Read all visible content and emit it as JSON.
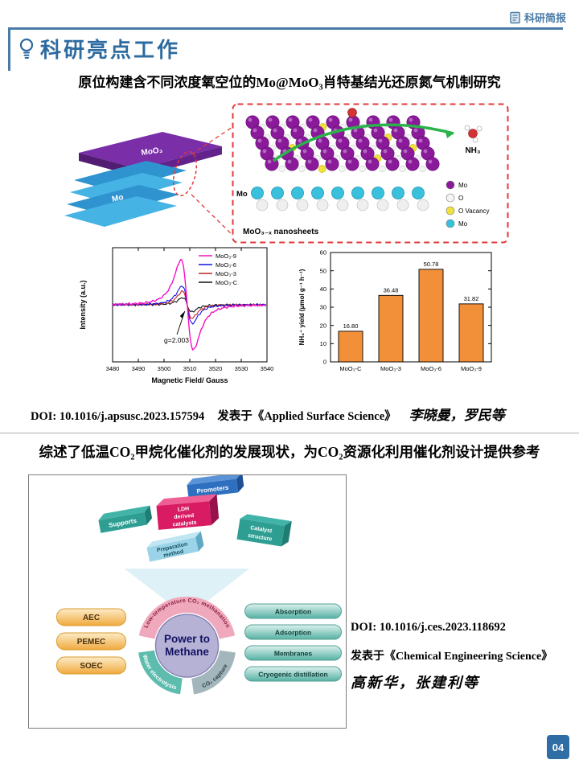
{
  "colors": {
    "accent": "#2c6aa0",
    "rule": "#4a7ba6",
    "dashed_box": "#e23a3a",
    "bar_fill": "#f2903a"
  },
  "masthead": {
    "brand": "科研简报"
  },
  "header": {
    "title": "科研亮点工作"
  },
  "section1": {
    "title": "原位构建含不同浓度氧空位的Mo@MoO₃肖特基结光还原氮气机制研究",
    "schematic": {
      "layer_top_label": "MoO₃",
      "layer_bottom_label": "Mo",
      "mo_side_label": "Mo",
      "nanosheet_label": "MoO₃₋ₓ nanosheets",
      "nh3_label": "NH₃",
      "legend": [
        {
          "label": "Mo",
          "color": "#8b1a9b"
        },
        {
          "label": "O",
          "color": "#f4f4f4"
        },
        {
          "label": "O Vacancy",
          "color": "#f2e13c"
        },
        {
          "label": "Mo",
          "color": "#38c0dd"
        }
      ]
    },
    "citation": {
      "doi": "DOI: 10.1016/j.apsusc.2023.157594",
      "published": "发表于《Applied Surface Science》",
      "authors": "李晓曼，罗民等"
    }
  },
  "section2": {
    "title": "综述了低温CO₂甲烷化催化剂的发展现状，为CO₂资源化利用催化剂设计提供参考",
    "abstract_fig": {
      "top_boxes": [
        {
          "label": "Supports",
          "lines": [
            "Supports"
          ]
        },
        {
          "label": "Promoters",
          "lines": [
            "Promoters"
          ]
        },
        {
          "label": "LDH derived catalysts",
          "lines": [
            "LDH",
            "derived",
            "catalysts"
          ]
        },
        {
          "label": "Catalyst structure",
          "lines": [
            "Catalyst",
            "structure"
          ]
        },
        {
          "label": "Preparation method",
          "lines": [
            "Preparation",
            "method"
          ]
        }
      ],
      "center_title": "Power to Methane",
      "center_lines": [
        "Power to",
        "Methane"
      ],
      "arc_top": "Low-temperature CO₂ methanation",
      "arc_left": "Water electrolysis",
      "arc_right": "CO₂ capture",
      "left_items": [
        "AEC",
        "PEMEC",
        "SOEC"
      ],
      "right_items": [
        "Absorption",
        "Adsorption",
        "Membranes",
        "Cryogenic distillation"
      ]
    },
    "citation": {
      "doi": "DOI: 10.1016/j.ces.2023.118692",
      "published": "发表于《Chemical Engineering  Science》",
      "authors": "高新华，张建利等"
    }
  },
  "footer": {
    "page_number": "04"
  },
  "chart_data": [
    {
      "type": "line",
      "title": "EPR spectra of MoO3 samples",
      "xlabel": "Magnetic Field/ Gauss",
      "ylabel": "Intensity (a.u.)",
      "xlim": [
        3480,
        3540
      ],
      "xticks": [
        3480,
        3490,
        3500,
        3510,
        3520,
        3530,
        3540
      ],
      "annotation": "g=2.003",
      "annotation_x": 3509,
      "legend_position": "top-right",
      "series": [
        {
          "name": "MoO₃-9",
          "color": "#f312c6",
          "amplitude": 1.0,
          "center": 3509,
          "width": 4.2
        },
        {
          "name": "MoO₃-6",
          "color": "#1414e6",
          "amplitude": 0.42,
          "center": 3509,
          "width": 3.4
        },
        {
          "name": "MoO₃-3",
          "color": "#c02424",
          "amplitude": 0.3,
          "center": 3509,
          "width": 3.2
        },
        {
          "name": "MoO₃-C",
          "color": "#111111",
          "amplitude": 0.16,
          "center": 3509,
          "width": 3.0
        }
      ]
    },
    {
      "type": "bar",
      "categories": [
        "MoO₃-C",
        "MoO₃-3",
        "MoO₃-6",
        "MoO₃-9"
      ],
      "values": [
        16.8,
        36.48,
        50.78,
        31.82
      ],
      "labels": [
        "16.80",
        "36.48",
        "50.78",
        "31.82"
      ],
      "ylabel": "NH₄⁺ yield (μmol g⁻¹ h⁻¹)",
      "ylim": [
        0,
        60
      ],
      "yticks": [
        0,
        10,
        20,
        30,
        40,
        50,
        60
      ],
      "bar_color": "#f2903a"
    }
  ]
}
